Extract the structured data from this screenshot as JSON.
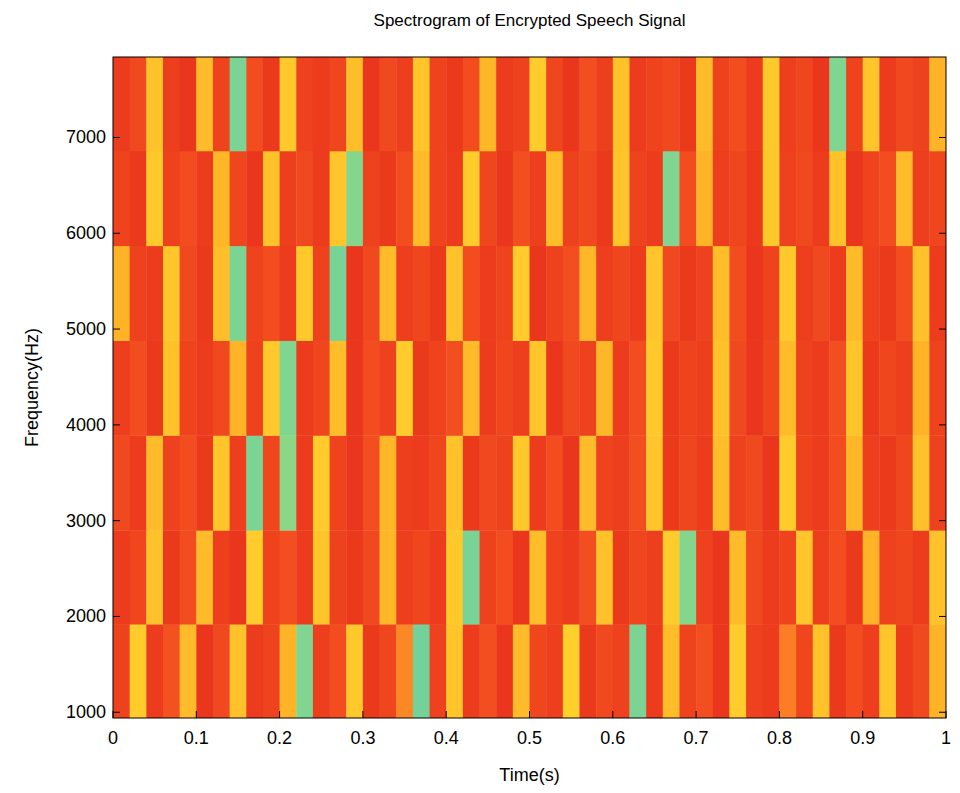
{
  "chart_data": {
    "type": "heatmap",
    "title": "Spectrogram of Encrypted Speech Signal",
    "x_label": "Time(s)",
    "y_label": "Frequency(Hz)",
    "xlim": [
      0,
      1
    ],
    "xticks": [
      0,
      0.1,
      0.2,
      0.3,
      0.4,
      0.5,
      0.6,
      0.7,
      0.8,
      0.9,
      1
    ],
    "ylim": [
      940,
      7840
    ],
    "yticks": [
      1000,
      2000,
      3000,
      4000,
      5000,
      6000,
      7000
    ],
    "x": [
      0,
      0.02,
      0.04,
      0.06,
      0.08,
      0.1,
      0.12,
      0.14,
      0.16,
      0.18,
      0.2,
      0.22,
      0.24,
      0.26,
      0.28,
      0.3,
      0.32,
      0.34,
      0.36,
      0.38,
      0.4,
      0.42,
      0.44,
      0.46,
      0.48,
      0.5,
      0.52,
      0.54,
      0.56,
      0.58,
      0.6,
      0.62,
      0.64,
      0.66,
      0.68,
      0.7,
      0.72,
      0.74,
      0.76,
      0.78,
      0.8,
      0.82,
      0.84,
      0.86,
      0.88,
      0.9,
      0.92,
      0.94,
      0.96,
      0.98,
      1
    ],
    "y": [
      940,
      1920,
      2900,
      3890,
      4880,
      5870,
      6860,
      7840
    ],
    "color_range": [
      0,
      1
    ],
    "cells": [
      [
        0.88,
        0.55,
        0.9,
        0.82,
        0.6,
        0.92,
        0.85,
        0.58,
        0.9,
        0.87,
        0.62,
        0.15,
        0.89,
        0.84,
        0.56,
        0.91,
        0.86,
        0.7,
        0.12,
        0.88,
        0.57,
        0.9,
        0.83,
        0.92,
        0.6,
        0.86,
        0.89,
        0.54,
        0.91,
        0.85,
        0.88,
        0.14,
        0.9,
        0.59,
        0.87,
        0.83,
        0.92,
        0.55,
        0.88,
        0.9,
        0.72,
        0.86,
        0.58,
        0.91,
        0.84,
        0.89,
        0.57,
        0.9,
        0.85,
        0.62
      ],
      [
        0.9,
        0.86,
        0.58,
        0.91,
        0.84,
        0.6,
        0.89,
        0.92,
        0.55,
        0.87,
        0.83,
        0.9,
        0.57,
        0.88,
        0.91,
        0.85,
        0.61,
        0.89,
        0.86,
        0.9,
        0.56,
        0.13,
        0.88,
        0.84,
        0.92,
        0.59,
        0.87,
        0.9,
        0.83,
        0.58,
        0.91,
        0.86,
        0.89,
        0.55,
        0.16,
        0.88,
        0.92,
        0.6,
        0.85,
        0.9,
        0.87,
        0.57,
        0.89,
        0.84,
        0.91,
        0.62,
        0.88,
        0.86,
        0.9,
        0.58
      ],
      [
        0.85,
        0.9,
        0.6,
        0.88,
        0.84,
        0.91,
        0.57,
        0.89,
        0.14,
        0.86,
        0.18,
        0.9,
        0.55,
        0.87,
        0.92,
        0.83,
        0.61,
        0.89,
        0.9,
        0.86,
        0.58,
        0.91,
        0.85,
        0.88,
        0.56,
        0.9,
        0.84,
        0.92,
        0.6,
        0.87,
        0.89,
        0.83,
        0.57,
        0.91,
        0.86,
        0.9,
        0.59,
        0.88,
        0.85,
        0.92,
        0.55,
        0.87,
        0.9,
        0.84,
        0.61,
        0.89,
        0.91,
        0.86,
        0.58,
        0.88
      ],
      [
        0.89,
        0.84,
        0.91,
        0.58,
        0.87,
        0.9,
        0.85,
        0.62,
        0.88,
        0.56,
        0.15,
        0.9,
        0.86,
        0.59,
        0.92,
        0.84,
        0.88,
        0.55,
        0.91,
        0.87,
        0.83,
        0.6,
        0.9,
        0.86,
        0.89,
        0.57,
        0.92,
        0.85,
        0.88,
        0.61,
        0.9,
        0.84,
        0.56,
        0.91,
        0.87,
        0.89,
        0.58,
        0.85,
        0.92,
        0.86,
        0.6,
        0.88,
        0.9,
        0.83,
        0.57,
        0.91,
        0.86,
        0.89,
        0.62,
        0.87
      ],
      [
        0.62,
        0.88,
        0.9,
        0.57,
        0.85,
        0.91,
        0.59,
        0.14,
        0.87,
        0.84,
        0.9,
        0.56,
        0.88,
        0.13,
        0.92,
        0.85,
        0.6,
        0.89,
        0.86,
        0.91,
        0.58,
        0.84,
        0.9,
        0.87,
        0.55,
        0.92,
        0.88,
        0.83,
        0.61,
        0.89,
        0.86,
        0.9,
        0.57,
        0.85,
        0.91,
        0.88,
        0.59,
        0.84,
        0.92,
        0.87,
        0.56,
        0.89,
        0.85,
        0.9,
        0.6,
        0.88,
        0.91,
        0.84,
        0.58,
        0.9
      ],
      [
        0.87,
        0.91,
        0.56,
        0.88,
        0.84,
        0.9,
        0.61,
        0.86,
        0.92,
        0.58,
        0.89,
        0.85,
        0.9,
        0.57,
        0.16,
        0.88,
        0.91,
        0.84,
        0.6,
        0.87,
        0.9,
        0.55,
        0.86,
        0.92,
        0.83,
        0.89,
        0.59,
        0.88,
        0.85,
        0.91,
        0.57,
        0.87,
        0.9,
        0.15,
        0.84,
        0.62,
        0.89,
        0.86,
        0.91,
        0.56,
        0.88,
        0.85,
        0.9,
        0.58,
        0.92,
        0.87,
        0.84,
        0.6,
        0.89,
        0.86
      ],
      [
        0.9,
        0.85,
        0.58,
        0.89,
        0.92,
        0.6,
        0.87,
        0.14,
        0.84,
        0.91,
        0.56,
        0.88,
        0.9,
        0.86,
        0.59,
        0.92,
        0.85,
        0.89,
        0.57,
        0.87,
        0.91,
        0.84,
        0.61,
        0.9,
        0.88,
        0.55,
        0.86,
        0.92,
        0.83,
        0.89,
        0.58,
        0.9,
        0.87,
        0.85,
        0.91,
        0.6,
        0.88,
        0.84,
        0.9,
        0.56,
        0.89,
        0.86,
        0.92,
        0.15,
        0.87,
        0.57,
        0.9,
        0.85,
        0.88,
        0.62
      ]
    ]
  }
}
